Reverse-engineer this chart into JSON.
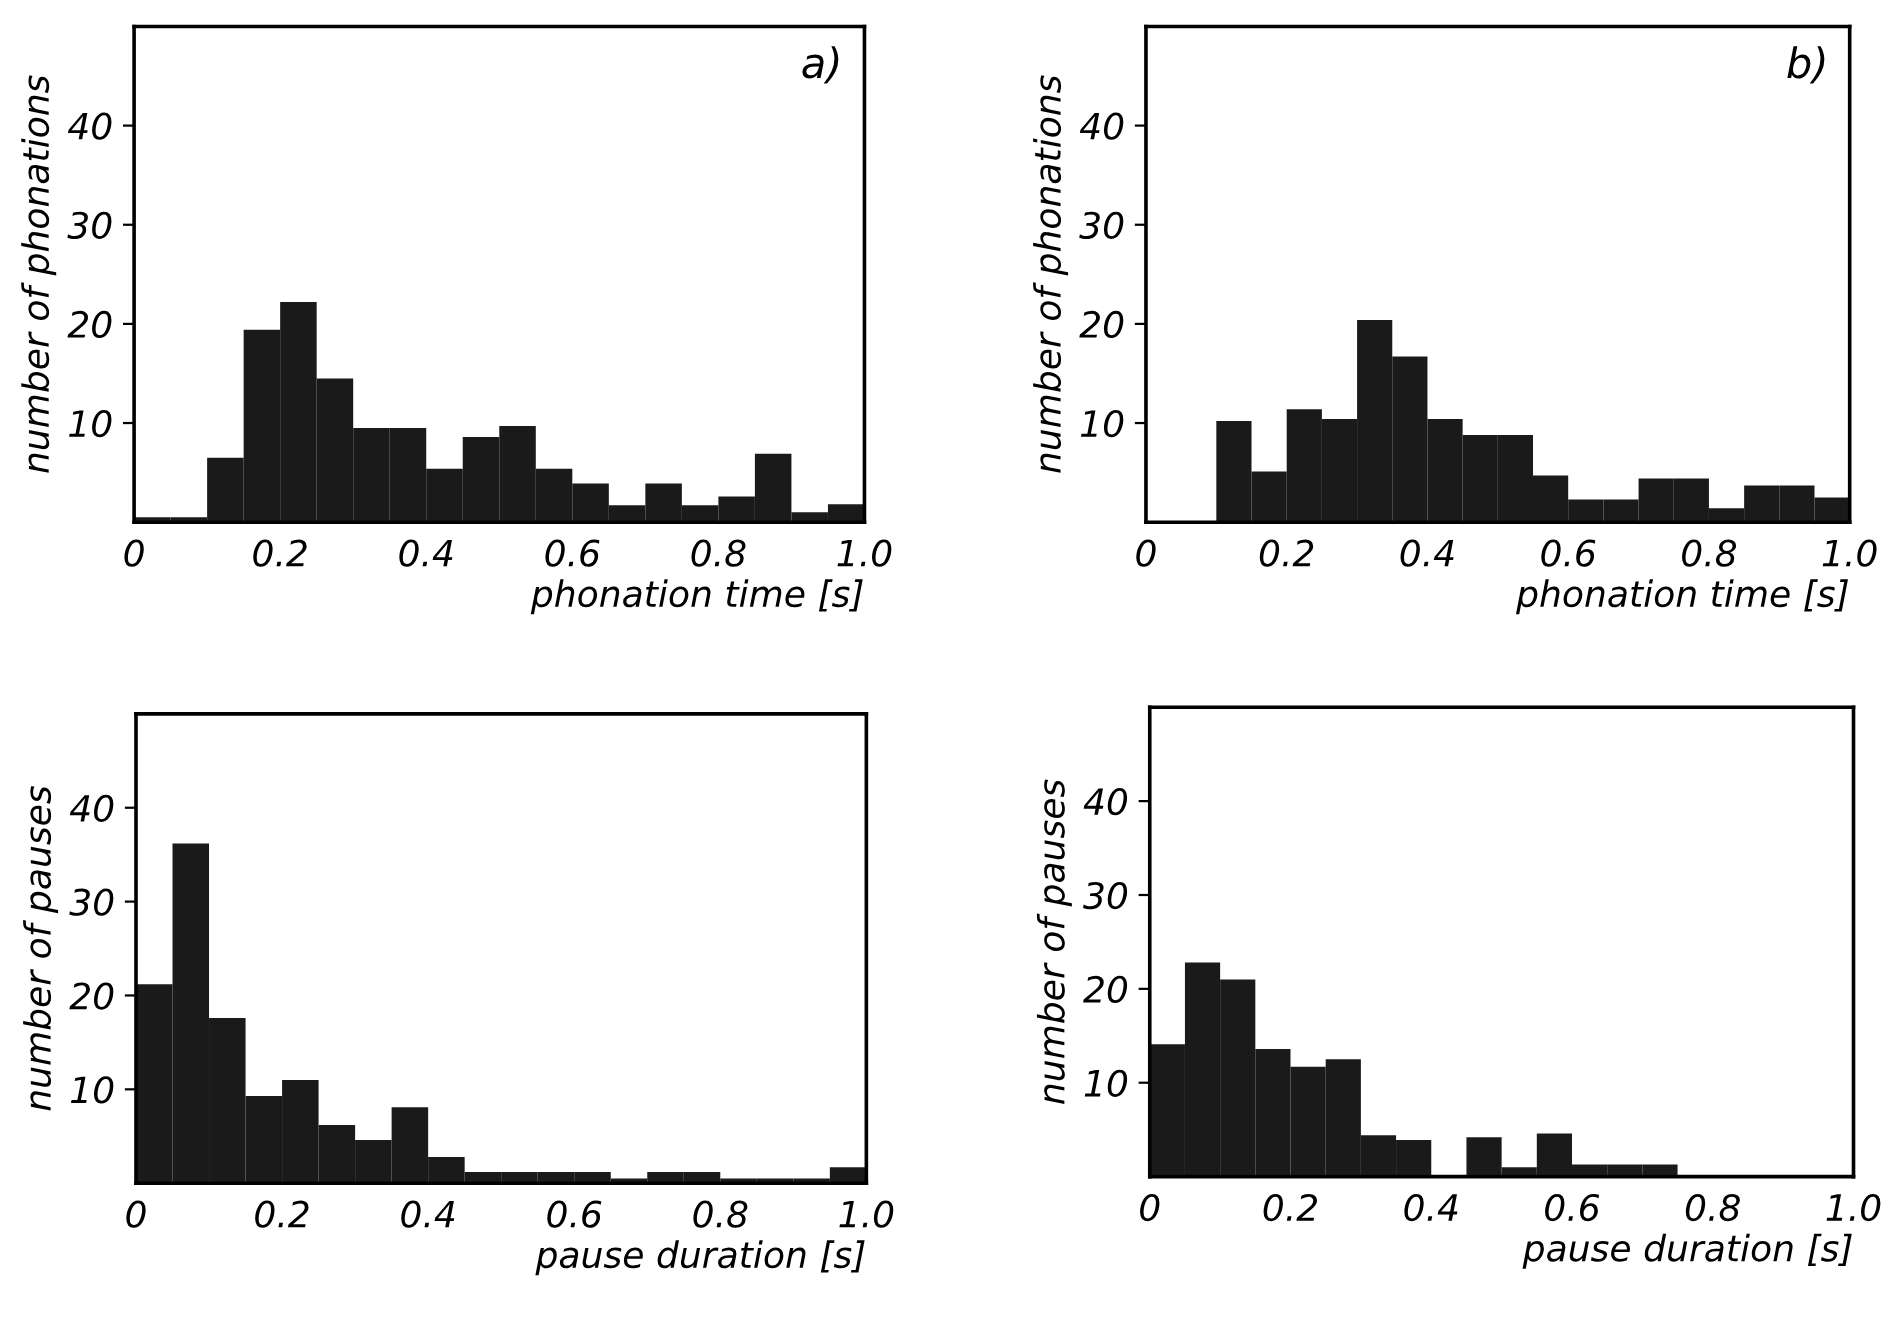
{
  "chart_data": [
    {
      "type": "histogram",
      "annotations": [
        "a)"
      ],
      "xlabel": "phonation time [s]",
      "ylabel": "number of phonations",
      "color": "#1a1a1a",
      "bins": [
        0,
        0.05,
        0.1,
        0.15,
        0.2,
        0.25,
        0.3,
        0.35,
        0.4,
        0.45,
        0.5,
        0.55,
        0.6,
        0.65,
        0.7,
        0.75,
        0.8,
        0.85,
        0.9,
        0.95,
        1.0
      ],
      "values": [
        0.5,
        0.5,
        6.5,
        19.4,
        22.2,
        14.5,
        9.5,
        9.5,
        5.4,
        8.6,
        9.7,
        5.4,
        3.9,
        1.7,
        3.9,
        1.7,
        2.6,
        6.9,
        1.0,
        1.8
      ],
      "xlim": [
        0,
        1.0
      ],
      "ylim": [
        0,
        50
      ],
      "xticks": [
        0,
        {
          "value": 0.2,
          "label": "0.2"
        },
        {
          "value": 0.4,
          "label": "0.4"
        },
        {
          "value": 0.6,
          "label": "0.6"
        },
        {
          "value": 0.8,
          "label": "0.8"
        },
        {
          "value": 1.0,
          "label": "1.0"
        }
      ],
      "yticks": [
        10,
        20,
        30,
        40
      ],
      "grid": false
    },
    {
      "type": "histogram",
      "annotations": [
        "b)"
      ],
      "xlabel": "phonation time [s]",
      "ylabel": "number of phonations",
      "color": "#1a1a1a",
      "bins": [
        0,
        0.05,
        0.1,
        0.15,
        0.2,
        0.25,
        0.3,
        0.35,
        0.4,
        0.45,
        0.5,
        0.55,
        0.6,
        0.65,
        0.7,
        0.75,
        0.8,
        0.85,
        0.9,
        0.95,
        1.0
      ],
      "values": [
        null,
        null,
        10.2,
        5.1,
        11.4,
        10.4,
        20.4,
        16.7,
        10.4,
        8.8,
        8.8,
        4.7,
        2.3,
        2.3,
        4.4,
        4.4,
        1.4,
        3.7,
        3.7,
        2.5
      ],
      "xlim": [
        0,
        1.0
      ],
      "ylim": [
        0,
        50
      ],
      "xticks": [
        0,
        {
          "value": 0.2,
          "label": "0.2"
        },
        {
          "value": 0.4,
          "label": "0.4"
        },
        {
          "value": 0.6,
          "label": "0.6"
        },
        {
          "value": 0.8,
          "label": "0.8"
        },
        {
          "value": 1.0,
          "label": "1.0"
        }
      ],
      "yticks": [
        10,
        20,
        30,
        40
      ],
      "grid": false
    },
    {
      "type": "histogram",
      "xlabel": "pause duration [s]",
      "ylabel": "number of pauses",
      "color": "#1a1a1a",
      "bins": [
        0,
        0.05,
        0.1,
        0.15,
        0.2,
        0.25,
        0.3,
        0.35,
        0.4,
        0.45,
        0.5,
        0.55,
        0.6,
        0.65,
        0.7,
        0.75,
        0.8,
        0.85,
        0.9,
        0.95,
        1.0
      ],
      "values": [
        21.2,
        36.2,
        17.6,
        9.3,
        11.0,
        6.2,
        4.6,
        8.1,
        2.8,
        1.2,
        1.2,
        1.2,
        1.2,
        0.5,
        1.2,
        1.2,
        0.5,
        0.5,
        0.5,
        1.7
      ],
      "xlim": [
        0,
        1.0
      ],
      "ylim": [
        0,
        50
      ],
      "xticks": [
        0,
        {
          "value": 0.2,
          "label": "0.2"
        },
        {
          "value": 0.4,
          "label": "0.4"
        },
        {
          "value": 0.6,
          "label": "0.6"
        },
        {
          "value": 0.8,
          "label": "0.8"
        },
        {
          "value": 1.0,
          "label": "1.0"
        }
      ],
      "yticks": [
        10,
        20,
        30,
        40
      ],
      "grid": false
    },
    {
      "type": "histogram",
      "xlabel": "pause duration [s]",
      "ylabel": "number of pauses",
      "color": "#1a1a1a",
      "bins": [
        0,
        0.05,
        0.1,
        0.15,
        0.2,
        0.25,
        0.3,
        0.35,
        0.4,
        0.45,
        0.5,
        0.55,
        0.6,
        0.65,
        0.7,
        0.75,
        0.8,
        0.85,
        0.9,
        0.95,
        1.0
      ],
      "values": [
        14.1,
        22.8,
        21.0,
        13.6,
        11.7,
        12.5,
        4.4,
        3.9,
        0,
        4.2,
        1.0,
        4.6,
        1.3,
        1.3,
        1.3,
        null,
        0,
        0,
        0,
        0
      ],
      "xlim": [
        0,
        1.0
      ],
      "ylim": [
        0,
        50
      ],
      "xticks": [
        0,
        {
          "value": 0.2,
          "label": "0.2"
        },
        {
          "value": 0.4,
          "label": "0.4"
        },
        {
          "value": 0.6,
          "label": "0.6"
        },
        {
          "value": 0.8,
          "label": "0.8"
        },
        {
          "value": 1.0,
          "label": "1.0"
        }
      ],
      "yticks": [
        10,
        20,
        30,
        40
      ],
      "grid": false
    }
  ]
}
